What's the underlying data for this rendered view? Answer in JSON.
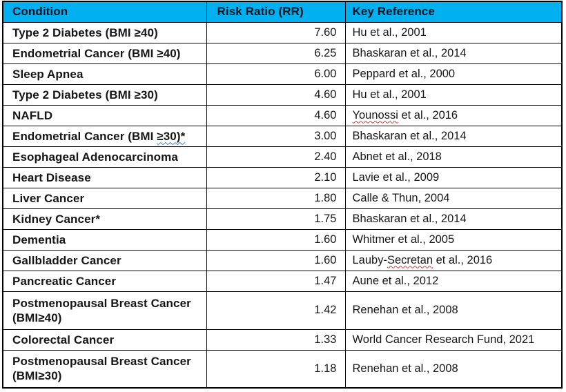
{
  "colors": {
    "header_bg": "#00b0f0",
    "header_text": "#04121d",
    "body_text": "#161616",
    "border": "#000000",
    "spellcheck_red": "#c0463c",
    "grammar_blue": "#3f7dbe"
  },
  "table": {
    "columns": [
      {
        "key": "condition",
        "label": "Condition"
      },
      {
        "key": "rr",
        "label": "Risk Ratio (RR)"
      },
      {
        "key": "reference",
        "label": "Key Reference"
      }
    ],
    "rows": [
      {
        "condition": [
          {
            "text": "Type 2 Diabetes (BMI ≥40)"
          }
        ],
        "rr": "7.60",
        "reference": [
          {
            "text": "Hu et al., 2001"
          }
        ]
      },
      {
        "condition": [
          {
            "text": "Endometrial Cancer (BMI ≥40)"
          }
        ],
        "rr": "6.25",
        "reference": [
          {
            "text": "Bhaskaran et al., 2014"
          }
        ]
      },
      {
        "condition": [
          {
            "text": "Sleep Apnea"
          }
        ],
        "rr": "6.00",
        "reference": [
          {
            "text": "Peppard et al., 2000"
          }
        ]
      },
      {
        "condition": [
          {
            "text": "Type 2 Diabetes (BMI ≥30)"
          }
        ],
        "rr": "4.60",
        "reference": [
          {
            "text": "Hu et al., 2001"
          }
        ]
      },
      {
        "condition": [
          {
            "text": "NAFLD"
          }
        ],
        "rr": "4.60",
        "reference": [
          {
            "text": "Younossi",
            "underline": "wavy-red"
          },
          {
            "text": " et al., 2016"
          }
        ]
      },
      {
        "condition": [
          {
            "text": "Endometrial Cancer (BMI "
          },
          {
            "text": "≥30)*",
            "underline": "wavy-blue"
          }
        ],
        "rr": "3.00",
        "reference": [
          {
            "text": "Bhaskaran et al., 2014"
          }
        ]
      },
      {
        "condition": [
          {
            "text": "Esophageal Adenocarcinoma"
          }
        ],
        "rr": "2.40",
        "reference": [
          {
            "text": "Abnet et al., 2018"
          }
        ]
      },
      {
        "condition": [
          {
            "text": "Heart Disease"
          }
        ],
        "rr": "2.10",
        "reference": [
          {
            "text": "Lavie et al., 2009"
          }
        ]
      },
      {
        "condition": [
          {
            "text": "Liver Cancer"
          }
        ],
        "rr": "1.80",
        "reference": [
          {
            "text": "Calle & Thun, 2004"
          }
        ]
      },
      {
        "condition": [
          {
            "text": "Kidney Cancer*"
          }
        ],
        "rr": "1.75",
        "reference": [
          {
            "text": "Bhaskaran et al., 2014"
          }
        ]
      },
      {
        "condition": [
          {
            "text": "Dementia"
          }
        ],
        "rr": "1.60",
        "reference": [
          {
            "text": "Whitmer et al., 2005"
          }
        ]
      },
      {
        "condition": [
          {
            "text": "Gallbladder Cancer"
          }
        ],
        "rr": "1.60",
        "reference": [
          {
            "text": "Lauby-"
          },
          {
            "text": "Secretan",
            "underline": "wavy-red"
          },
          {
            "text": " et al., 2016"
          }
        ]
      },
      {
        "condition": [
          {
            "text": "Pancreatic Cancer"
          }
        ],
        "rr": "1.47",
        "reference": [
          {
            "text": "Aune et al., 2012"
          }
        ]
      },
      {
        "condition": [
          {
            "text": "Postmenopausal Breast Cancer"
          },
          {
            "break": true
          },
          {
            "text": "(BMI≥40)"
          }
        ],
        "rr": "1.42",
        "reference": [
          {
            "text": "Renehan et al., 2008"
          }
        ]
      },
      {
        "condition": [
          {
            "text": "Colorectal Cancer"
          }
        ],
        "rr": "1.33",
        "reference": [
          {
            "text": "World Cancer Research Fund, 2021"
          }
        ]
      },
      {
        "condition": [
          {
            "text": "Postmenopausal Breast Cancer"
          },
          {
            "break": true
          },
          {
            "text": "(BMI≥30)"
          }
        ],
        "rr": "1.18",
        "reference": [
          {
            "text": "Renehan et al., 2008"
          }
        ]
      }
    ]
  }
}
